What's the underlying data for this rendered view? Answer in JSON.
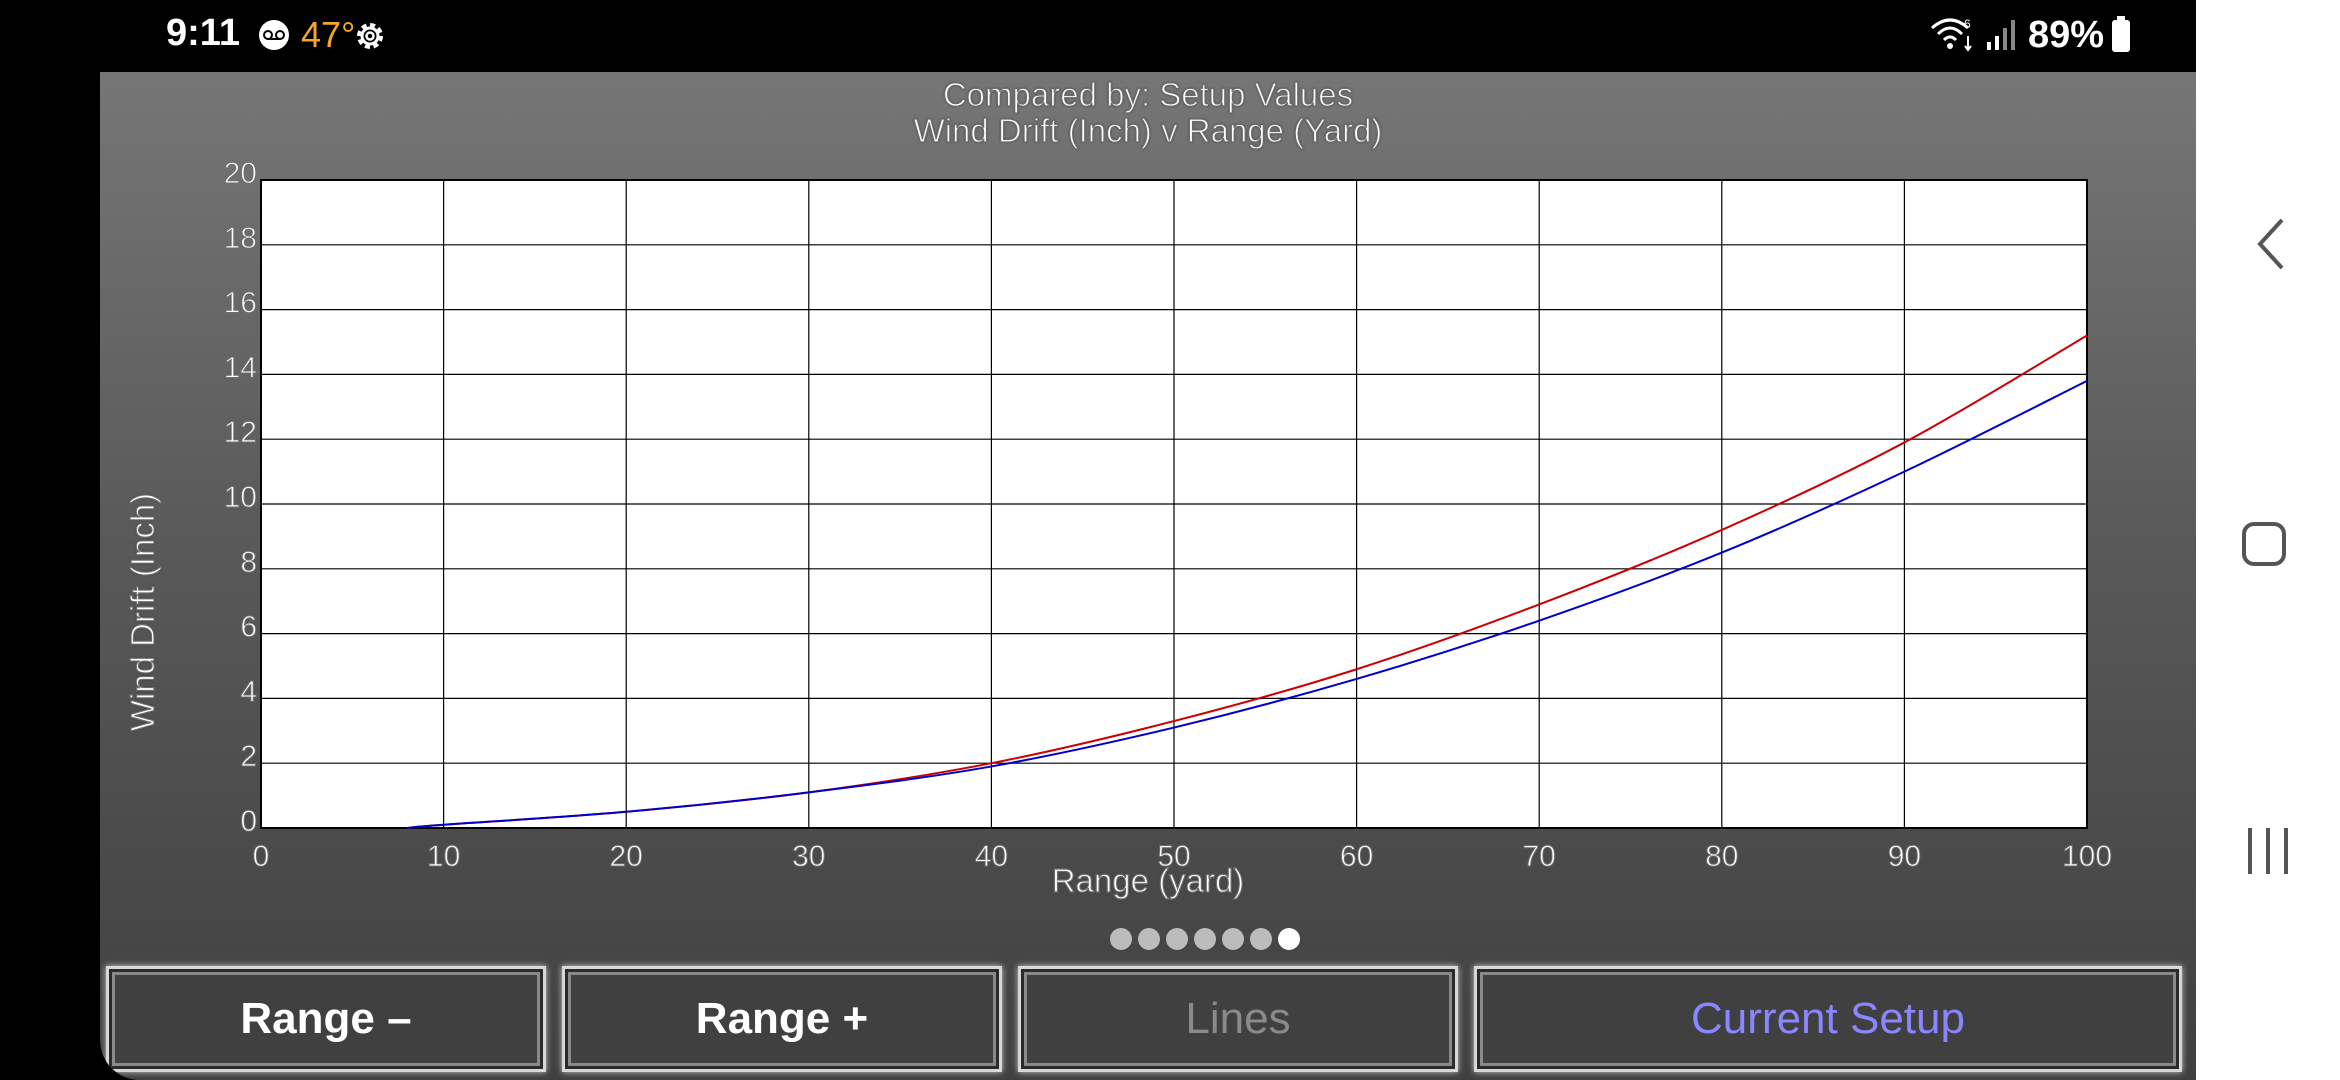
{
  "status_bar": {
    "time": "9:11",
    "temperature": "47°",
    "battery": "89%",
    "icons": [
      "voicemail-icon",
      "gear-icon",
      "wifi-icon",
      "signal-icon",
      "battery-icon"
    ]
  },
  "chart": {
    "title_line1": "Compared by: Setup Values",
    "title_line2": "Wind Drift (Inch) v Range (Yard)"
  },
  "chart_data": {
    "type": "line",
    "title": "Compared by: Setup Values",
    "subtitle": "Wind Drift (Inch) v Range (Yard)",
    "xlabel": "Range (yard)",
    "ylabel": "Wind Drift (Inch)",
    "xlim": [
      0,
      100
    ],
    "ylim": [
      0,
      20
    ],
    "x_ticks": [
      "0",
      "10",
      "20",
      "30",
      "40",
      "50",
      "60",
      "70",
      "80",
      "90",
      "100"
    ],
    "y_ticks": [
      "0",
      "2",
      "4",
      "6",
      "8",
      "10",
      "12",
      "14",
      "16",
      "18",
      "20"
    ],
    "grid": true,
    "series": [
      {
        "color": "#cc0000",
        "x": [
          8,
          10,
          20,
          30,
          40,
          50,
          60,
          70,
          80,
          90,
          100
        ],
        "y": [
          0.0,
          0.1,
          0.5,
          1.1,
          2.0,
          3.3,
          4.9,
          6.9,
          9.2,
          11.9,
          15.2
        ]
      },
      {
        "color": "#0000cc",
        "x": [
          8,
          10,
          20,
          30,
          40,
          50,
          60,
          70,
          80,
          90,
          100
        ],
        "y": [
          0.0,
          0.1,
          0.5,
          1.1,
          1.9,
          3.1,
          4.6,
          6.4,
          8.5,
          11.0,
          13.8
        ]
      }
    ]
  },
  "pager": {
    "count": 7,
    "active_index": 6
  },
  "buttons": {
    "range_minus": "Range –",
    "range_plus": "Range +",
    "lines": "Lines",
    "current_setup": "Current Setup"
  },
  "nav_bar": {
    "icons": [
      "back-icon",
      "home-icon",
      "recents-icon"
    ]
  }
}
